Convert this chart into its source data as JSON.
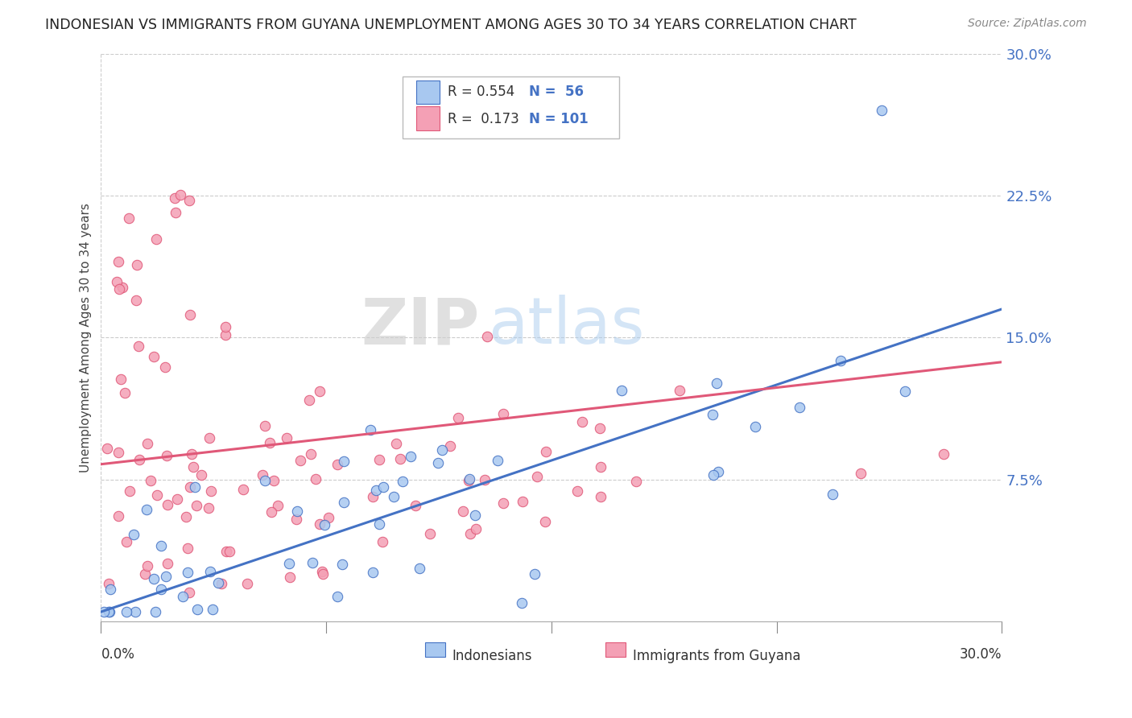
{
  "title": "INDONESIAN VS IMMIGRANTS FROM GUYANA UNEMPLOYMENT AMONG AGES 30 TO 34 YEARS CORRELATION CHART",
  "source": "Source: ZipAtlas.com",
  "ylabel": "Unemployment Among Ages 30 to 34 years",
  "yticks": [
    0.0,
    0.075,
    0.15,
    0.225,
    0.3
  ],
  "ytick_labels": [
    "",
    "7.5%",
    "15.0%",
    "22.5%",
    "30.0%"
  ],
  "xlim": [
    0.0,
    0.3
  ],
  "ylim": [
    0.0,
    0.3
  ],
  "legend_r1": "R = 0.554",
  "legend_n1": "N =  56",
  "legend_r2": "R =  0.173",
  "legend_n2": "N = 101",
  "color_blue": "#A8C8F0",
  "color_pink": "#F4A0B5",
  "color_blue_line": "#4472C4",
  "color_pink_line": "#E05878",
  "color_blue_text": "#4472C4",
  "color_pink_text": "#E05878",
  "watermark_zip": "ZIP",
  "watermark_atlas": "atlas",
  "label1": "Indonesians",
  "label2": "Immigrants from Guyana",
  "blue_line_start": 0.005,
  "blue_line_end": 0.165,
  "pink_line_start": 0.083,
  "pink_line_end": 0.137
}
